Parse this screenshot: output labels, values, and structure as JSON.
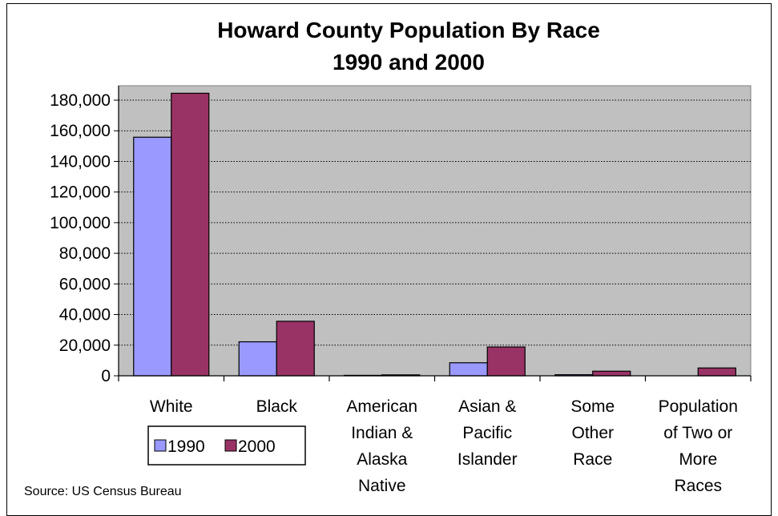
{
  "chart_data": {
    "type": "bar",
    "title": [
      "Howard County Population By Race",
      "1990 and 2000"
    ],
    "categories": [
      [
        "White"
      ],
      [
        "Black"
      ],
      [
        "American",
        "Indian &",
        "Alaska",
        "Native"
      ],
      [
        "Asian &",
        "Pacific",
        "Islander"
      ],
      [
        "Some",
        "Other",
        "Race"
      ],
      [
        "Population",
        "of Two or",
        "More",
        "Races"
      ]
    ],
    "series": [
      {
        "name": "1990",
        "color": "#9999ff",
        "values": [
          155800,
          22200,
          300,
          8500,
          700,
          0
        ]
      },
      {
        "name": "2000",
        "color": "#993366",
        "values": [
          184500,
          35600,
          600,
          18800,
          3000,
          5100
        ]
      }
    ],
    "yticks": [
      "0",
      "20,000",
      "40,000",
      "60,000",
      "80,000",
      "100,000",
      "120,000",
      "140,000",
      "160,000",
      "180,000"
    ],
    "ylim": [
      0,
      180000
    ],
    "grid": true,
    "plot_background": "#c0c0c0",
    "legend": "bottom-left",
    "source": "Source:  US Census Bureau"
  }
}
